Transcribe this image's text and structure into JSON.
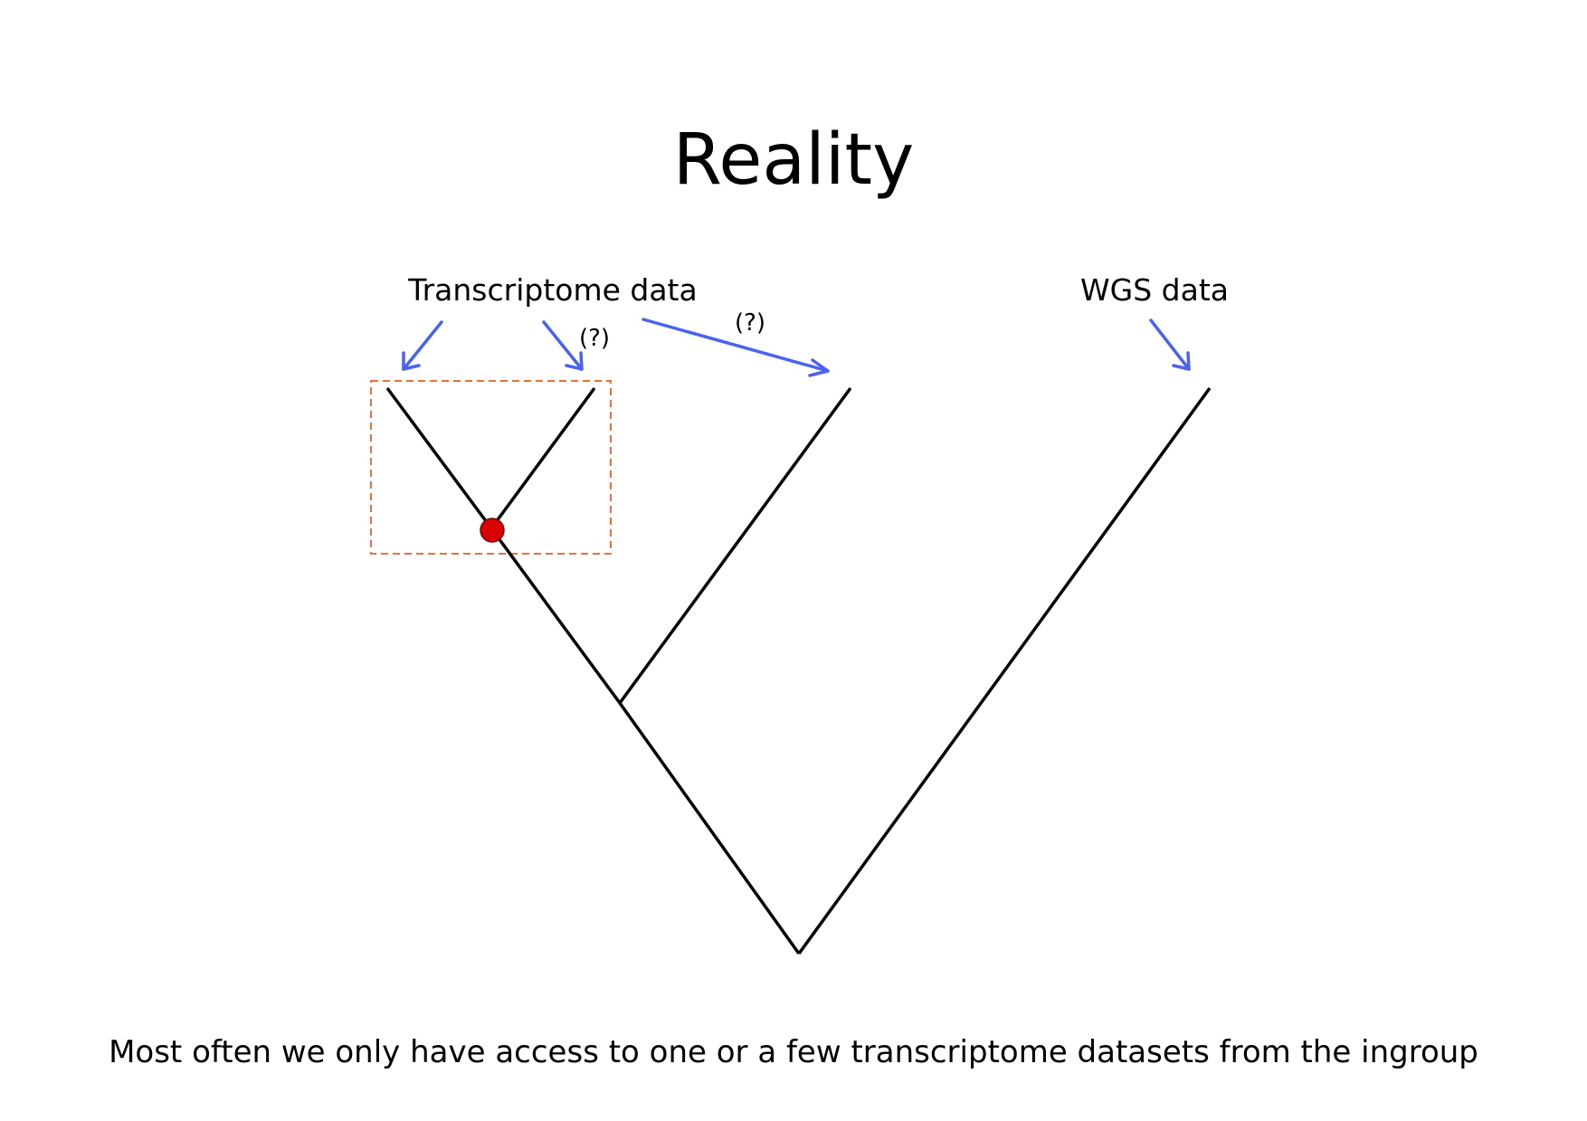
{
  "slide": {
    "title": "Reality",
    "caption": "Most often we only have access to one or a few transcriptome datasets from the ingroup"
  },
  "labels": {
    "transcriptome": "Transcriptome data",
    "wgs": "WGS data",
    "uncertain_1": "(?)",
    "uncertain_2": "(?)"
  },
  "colors": {
    "branch": "#000000",
    "arrow": "#4a63ee",
    "highlight_box": "#e8703a",
    "node_marker": "#d90000"
  },
  "tree": {
    "leaves": [
      "leaf-1",
      "leaf-2",
      "leaf-3",
      "leaf-4"
    ],
    "marked_node": "leaf-1 + leaf-2 split"
  }
}
